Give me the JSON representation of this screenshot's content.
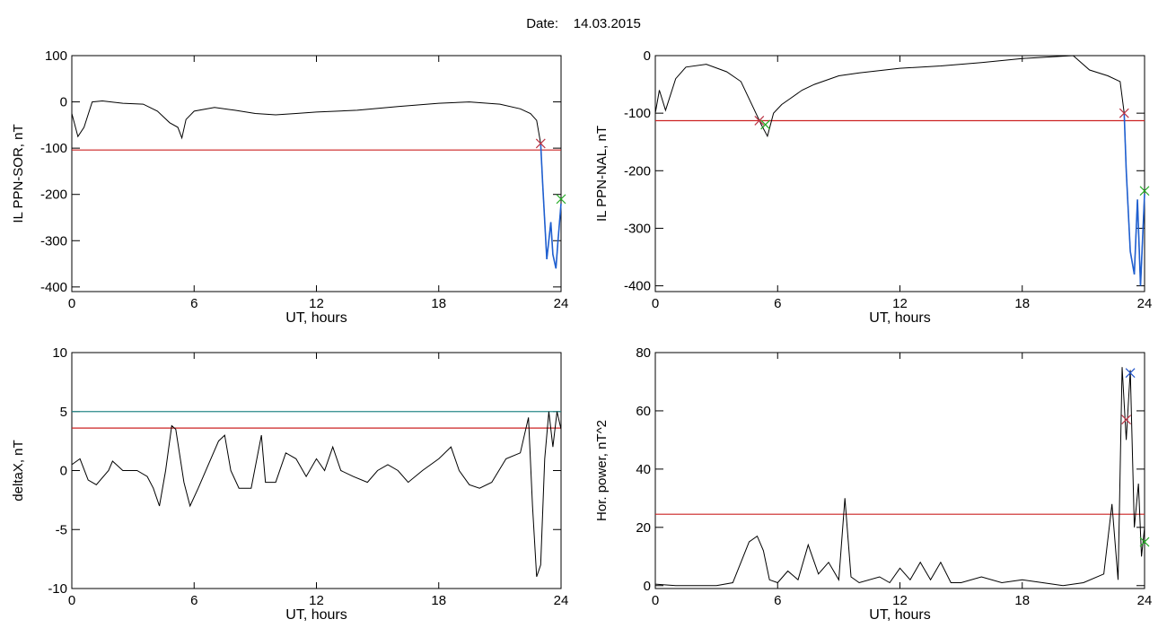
{
  "header": {
    "date_label": "Date:",
    "date_value": "14.03.2015"
  },
  "colors": {
    "trace": "#000000",
    "threshold": "#cc2222",
    "threshold2": "#2a8a8a",
    "event": "#1f5fd0",
    "marker_red": "#bb3344",
    "marker_green": "#22aa22",
    "marker_blue": "#2255cc"
  },
  "chart_data": [
    {
      "type": "line",
      "ylabel": "IL PPN-SOR, nT",
      "xlabel": "UT, hours",
      "xlim": [
        0,
        24
      ],
      "ylim": [
        -410,
        100
      ],
      "xticks": [
        0,
        6,
        12,
        18,
        24
      ],
      "yticks": [
        100,
        0,
        -100,
        -200,
        -300,
        -400
      ],
      "thresholds": [
        {
          "value": -104,
          "color": "red"
        }
      ],
      "series": [
        {
          "points": [
            [
              0,
              -25
            ],
            [
              0.3,
              -75
            ],
            [
              0.6,
              -55
            ],
            [
              1.0,
              0
            ],
            [
              1.5,
              2
            ],
            [
              2.5,
              -3
            ],
            [
              3.5,
              -5
            ],
            [
              4.2,
              -20
            ],
            [
              4.8,
              -45
            ],
            [
              5.2,
              -55
            ],
            [
              5.4,
              -78
            ],
            [
              5.6,
              -38
            ],
            [
              6.0,
              -20
            ],
            [
              7,
              -12
            ],
            [
              8,
              -18
            ],
            [
              9,
              -25
            ],
            [
              10,
              -28
            ],
            [
              11,
              -25
            ],
            [
              12,
              -22
            ],
            [
              14,
              -18
            ],
            [
              16,
              -10
            ],
            [
              18,
              -3
            ],
            [
              19.5,
              0
            ],
            [
              21,
              -5
            ],
            [
              22,
              -15
            ],
            [
              22.5,
              -25
            ],
            [
              22.8,
              -40
            ],
            [
              23.0,
              -90
            ],
            [
              23.1,
              -180
            ],
            [
              23.3,
              -340
            ],
            [
              23.5,
              -260
            ],
            [
              23.6,
              -330
            ],
            [
              23.75,
              -360
            ],
            [
              23.85,
              -300
            ],
            [
              24,
              -220
            ]
          ]
        }
      ],
      "event_segment": {
        "x_start": 23.0,
        "x_end": 24,
        "color": "blue"
      },
      "markers": [
        {
          "x": 23.0,
          "y": -90,
          "symbol": "x",
          "color": "red"
        },
        {
          "x": 24,
          "y": -210,
          "symbol": "x",
          "color": "green"
        }
      ]
    },
    {
      "type": "line",
      "ylabel": "IL PPN-NAL, nT",
      "xlabel": "UT, hours",
      "xlim": [
        0,
        24
      ],
      "ylim": [
        -410,
        0
      ],
      "xticks": [
        0,
        6,
        12,
        18,
        24
      ],
      "yticks": [
        0,
        -100,
        -200,
        -300,
        -400
      ],
      "thresholds": [
        {
          "value": -113,
          "color": "red"
        }
      ],
      "series": [
        {
          "points": [
            [
              0,
              -100
            ],
            [
              0.2,
              -60
            ],
            [
              0.5,
              -95
            ],
            [
              1,
              -40
            ],
            [
              1.5,
              -20
            ],
            [
              2.5,
              -15
            ],
            [
              3.5,
              -28
            ],
            [
              4.2,
              -45
            ],
            [
              4.8,
              -90
            ],
            [
              5.2,
              -120
            ],
            [
              5.5,
              -140
            ],
            [
              5.8,
              -100
            ],
            [
              6.2,
              -85
            ],
            [
              6.6,
              -75
            ],
            [
              7.2,
              -60
            ],
            [
              7.8,
              -50
            ],
            [
              9,
              -35
            ],
            [
              10,
              -30
            ],
            [
              12,
              -22
            ],
            [
              14,
              -18
            ],
            [
              16,
              -12
            ],
            [
              18,
              -5
            ],
            [
              19.5,
              -2
            ],
            [
              20.5,
              0
            ],
            [
              21.3,
              -25
            ],
            [
              22.2,
              -35
            ],
            [
              22.8,
              -45
            ],
            [
              23.0,
              -100
            ],
            [
              23.1,
              -200
            ],
            [
              23.3,
              -340
            ],
            [
              23.5,
              -380
            ],
            [
              23.65,
              -250
            ],
            [
              23.8,
              -400
            ],
            [
              24,
              -240
            ]
          ]
        }
      ],
      "event_segment": {
        "x_start": 23.0,
        "x_end": 24,
        "color": "blue"
      },
      "markers": [
        {
          "x": 5.1,
          "y": -113,
          "symbol": "x",
          "color": "red"
        },
        {
          "x": 5.4,
          "y": -120,
          "symbol": "x",
          "color": "green"
        },
        {
          "x": 23.0,
          "y": -100,
          "symbol": "x",
          "color": "red"
        },
        {
          "x": 24,
          "y": -235,
          "symbol": "x",
          "color": "green"
        }
      ]
    },
    {
      "type": "line",
      "ylabel": "deltaX, nT",
      "xlabel": "UT, hours",
      "xlim": [
        0,
        24
      ],
      "ylim": [
        -10,
        10
      ],
      "xticks": [
        0,
        6,
        12,
        18,
        24
      ],
      "yticks": [
        10,
        5,
        0,
        -5,
        -10
      ],
      "thresholds": [
        {
          "value": 5,
          "color": "teal"
        },
        {
          "value": 3.6,
          "color": "red"
        }
      ],
      "series": [
        {
          "points": [
            [
              0,
              0.5
            ],
            [
              0.4,
              1
            ],
            [
              0.8,
              -0.8
            ],
            [
              1.2,
              -1.2
            ],
            [
              1.8,
              0
            ],
            [
              2.0,
              0.8
            ],
            [
              2.5,
              0
            ],
            [
              3.2,
              0
            ],
            [
              3.7,
              -0.5
            ],
            [
              4.0,
              -1.5
            ],
            [
              4.3,
              -3
            ],
            [
              4.6,
              0
            ],
            [
              4.9,
              3.8
            ],
            [
              5.1,
              3.5
            ],
            [
              5.5,
              -1
            ],
            [
              5.8,
              -3
            ],
            [
              6.2,
              -1.5
            ],
            [
              6.7,
              0.5
            ],
            [
              7.2,
              2.5
            ],
            [
              7.5,
              3
            ],
            [
              7.8,
              0
            ],
            [
              8.2,
              -1.5
            ],
            [
              8.8,
              -1.5
            ],
            [
              9.3,
              3
            ],
            [
              9.5,
              -1
            ],
            [
              10,
              -1
            ],
            [
              10.5,
              1.5
            ],
            [
              11,
              1
            ],
            [
              11.5,
              -0.5
            ],
            [
              12,
              1
            ],
            [
              12.4,
              0
            ],
            [
              12.8,
              2
            ],
            [
              13.2,
              0
            ],
            [
              13.8,
              -0.5
            ],
            [
              14.5,
              -1
            ],
            [
              15,
              0
            ],
            [
              15.5,
              0.5
            ],
            [
              16,
              0
            ],
            [
              16.5,
              -1
            ],
            [
              17.2,
              0
            ],
            [
              18,
              1
            ],
            [
              18.6,
              2
            ],
            [
              19,
              0
            ],
            [
              19.5,
              -1.2
            ],
            [
              20,
              -1.5
            ],
            [
              20.6,
              -1
            ],
            [
              21.3,
              1
            ],
            [
              22,
              1.5
            ],
            [
              22.4,
              4.5
            ],
            [
              22.6,
              -3
            ],
            [
              22.8,
              -9
            ],
            [
              23.0,
              -8
            ],
            [
              23.2,
              1
            ],
            [
              23.4,
              5
            ],
            [
              23.6,
              2
            ],
            [
              23.8,
              5
            ],
            [
              24,
              3.5
            ]
          ]
        }
      ],
      "markers": []
    },
    {
      "type": "line",
      "ylabel": "Hor. power, nT^2",
      "xlabel": "UT, hours",
      "xlim": [
        0,
        24
      ],
      "ylim": [
        -1,
        80
      ],
      "xticks": [
        0,
        6,
        12,
        18,
        24
      ],
      "yticks": [
        80,
        60,
        40,
        20,
        0
      ],
      "thresholds": [
        {
          "value": 24.5,
          "color": "red"
        }
      ],
      "series": [
        {
          "points": [
            [
              0,
              0.5
            ],
            [
              1,
              0
            ],
            [
              2,
              0
            ],
            [
              3,
              0
            ],
            [
              3.8,
              1
            ],
            [
              4.2,
              8
            ],
            [
              4.6,
              15
            ],
            [
              5,
              17
            ],
            [
              5.3,
              12
            ],
            [
              5.6,
              2
            ],
            [
              6,
              1
            ],
            [
              6.5,
              5
            ],
            [
              7,
              2
            ],
            [
              7.5,
              14
            ],
            [
              8,
              4
            ],
            [
              8.5,
              8
            ],
            [
              9,
              2
            ],
            [
              9.3,
              30
            ],
            [
              9.6,
              3
            ],
            [
              10,
              1
            ],
            [
              11,
              3
            ],
            [
              11.5,
              1
            ],
            [
              12,
              6
            ],
            [
              12.5,
              2
            ],
            [
              13,
              8
            ],
            [
              13.5,
              2
            ],
            [
              14,
              8
            ],
            [
              14.5,
              1
            ],
            [
              15,
              1
            ],
            [
              16,
              3
            ],
            [
              17,
              1
            ],
            [
              18,
              2
            ],
            [
              19,
              1
            ],
            [
              20,
              0
            ],
            [
              21,
              1
            ],
            [
              22,
              4
            ],
            [
              22.4,
              28
            ],
            [
              22.7,
              2
            ],
            [
              22.9,
              75
            ],
            [
              23.1,
              50
            ],
            [
              23.3,
              74
            ],
            [
              23.5,
              20
            ],
            [
              23.7,
              35
            ],
            [
              23.85,
              10
            ],
            [
              24,
              20
            ]
          ]
        }
      ],
      "markers": [
        {
          "x": 23.3,
          "y": 73,
          "symbol": "x",
          "color": "blue"
        },
        {
          "x": 23.1,
          "y": 57,
          "symbol": "x",
          "color": "red"
        },
        {
          "x": 24,
          "y": 15,
          "symbol": "x",
          "color": "green"
        }
      ]
    }
  ]
}
